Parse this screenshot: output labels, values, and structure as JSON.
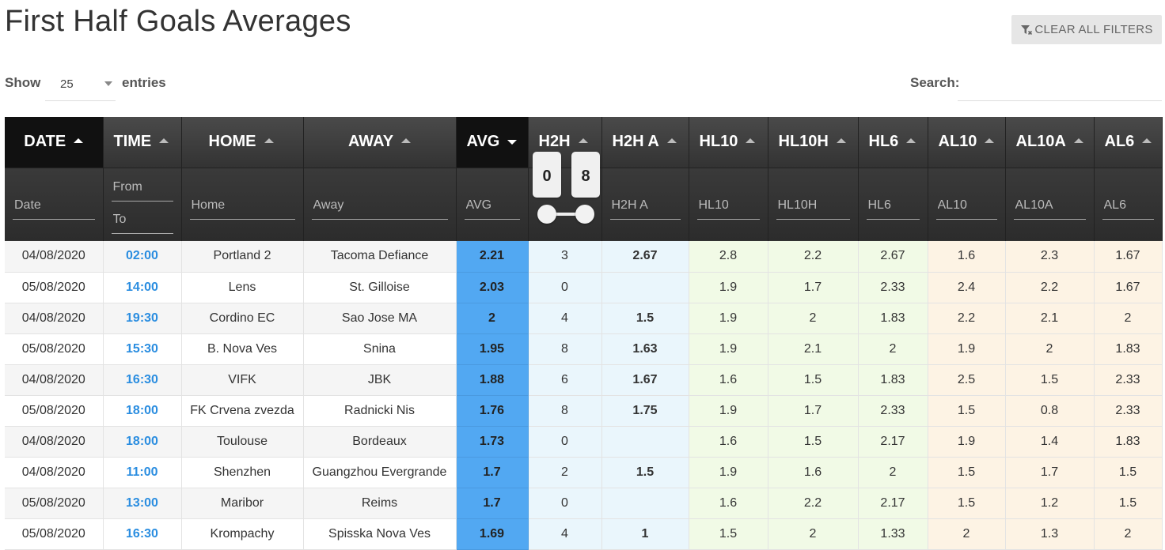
{
  "page": {
    "title": "First Half Goals Averages"
  },
  "toolbar": {
    "clear_label": "CLEAR ALL FILTERS"
  },
  "length": {
    "show_label": "Show",
    "value": "25",
    "entries_label": "entries"
  },
  "search": {
    "label": "Search:",
    "value": ""
  },
  "columns": [
    {
      "label": "DATE",
      "filter": "Date",
      "sort": "asc-active"
    },
    {
      "label": "TIME",
      "filter_from": "From",
      "filter_to": "To",
      "sort": "asc"
    },
    {
      "label": "HOME",
      "filter": "Home",
      "sort": "asc"
    },
    {
      "label": "AWAY",
      "filter": "Away",
      "sort": "asc"
    },
    {
      "label": "AVG",
      "filter": "AVG",
      "sort": "desc-active"
    },
    {
      "label": "H2H",
      "filter_min": "0",
      "filter_max": "8",
      "sort": "asc"
    },
    {
      "label": "H2H A",
      "filter": "H2H A",
      "sort": "asc"
    },
    {
      "label": "HL10",
      "filter": "HL10",
      "sort": "asc"
    },
    {
      "label": "HL10H",
      "filter": "HL10H",
      "sort": "asc"
    },
    {
      "label": "HL6",
      "filter": "HL6",
      "sort": "asc"
    },
    {
      "label": "AL10",
      "filter": "AL10",
      "sort": "asc"
    },
    {
      "label": "AL10A",
      "filter": "AL10A",
      "sort": "asc"
    },
    {
      "label": "AL6",
      "filter": "AL6",
      "sort": "asc"
    }
  ],
  "rows": [
    [
      "04/08/2020",
      "02:00",
      "Portland 2",
      "Tacoma Defiance",
      "2.21",
      "3",
      "2.67",
      "2.8",
      "2.2",
      "2.67",
      "1.6",
      "2.3",
      "1.67"
    ],
    [
      "05/08/2020",
      "14:00",
      "Lens",
      "St. Gilloise",
      "2.03",
      "0",
      "",
      "1.9",
      "1.7",
      "2.33",
      "2.4",
      "2.2",
      "1.67"
    ],
    [
      "04/08/2020",
      "19:30",
      "Cordino EC",
      "Sao Jose MA",
      "2",
      "4",
      "1.5",
      "1.9",
      "2",
      "1.83",
      "2.2",
      "2.1",
      "2"
    ],
    [
      "05/08/2020",
      "15:30",
      "B. Nova Ves",
      "Snina",
      "1.95",
      "8",
      "1.63",
      "1.9",
      "2.1",
      "2",
      "1.9",
      "2",
      "1.83"
    ],
    [
      "04/08/2020",
      "16:30",
      "VIFK",
      "JBK",
      "1.88",
      "6",
      "1.67",
      "1.6",
      "1.5",
      "1.83",
      "2.5",
      "1.5",
      "2.33"
    ],
    [
      "05/08/2020",
      "18:00",
      "FK Crvena zvezda",
      "Radnicki Nis",
      "1.76",
      "8",
      "1.75",
      "1.9",
      "1.7",
      "2.33",
      "1.5",
      "0.8",
      "2.33"
    ],
    [
      "04/08/2020",
      "18:00",
      "Toulouse",
      "Bordeaux",
      "1.73",
      "0",
      "",
      "1.6",
      "1.5",
      "2.17",
      "1.9",
      "1.4",
      "1.83"
    ],
    [
      "04/08/2020",
      "11:00",
      "Shenzhen",
      "Guangzhou Evergrande",
      "1.7",
      "2",
      "1.5",
      "1.9",
      "1.6",
      "2",
      "1.5",
      "1.7",
      "1.5"
    ],
    [
      "05/08/2020",
      "13:00",
      "Maribor",
      "Reims",
      "1.7",
      "0",
      "",
      "1.6",
      "2.2",
      "2.17",
      "1.5",
      "1.2",
      "1.5"
    ],
    [
      "05/08/2020",
      "16:30",
      "Krompachy",
      "Spisska Nova Ves",
      "1.69",
      "4",
      "1",
      "1.5",
      "2",
      "1.33",
      "2",
      "1.3",
      "2"
    ]
  ],
  "colors": {
    "avg": "#52a8f2",
    "h2h": "#eaf6fc",
    "home_last": "#f1fae6",
    "away_last": "#fdf3e4",
    "time": "#2a8de0",
    "header": "#333333"
  }
}
